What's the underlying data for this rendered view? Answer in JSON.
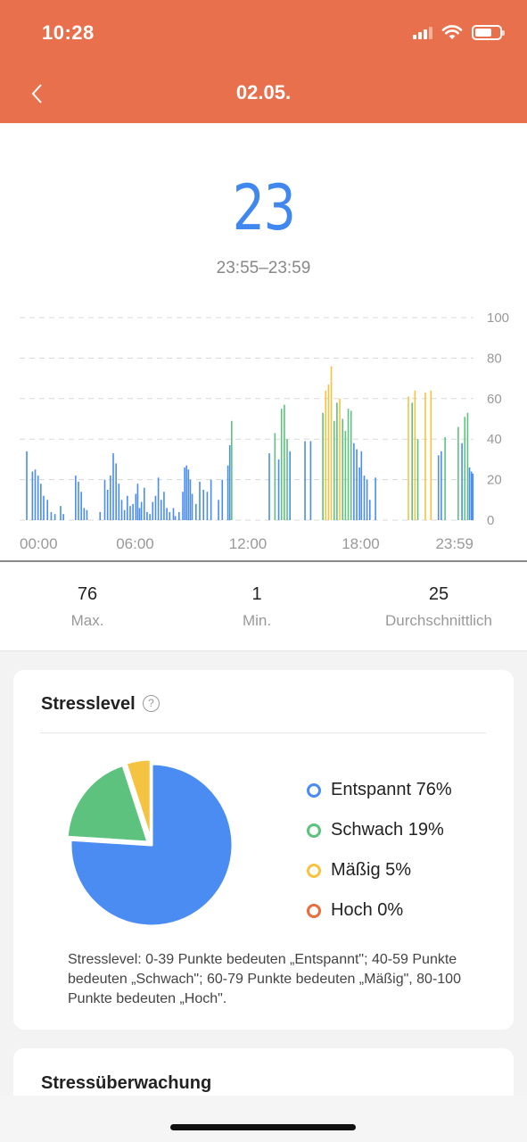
{
  "status_bar": {
    "time": "10:28"
  },
  "nav": {
    "title": "02.05."
  },
  "summary": {
    "value": "23",
    "range": "23:55–23:59"
  },
  "chart_data": {
    "type": "bar",
    "x_ticks": [
      "00:00",
      "06:00",
      "12:00",
      "18:00",
      "23:59"
    ],
    "y_ticks": [
      "100",
      "80",
      "60",
      "40",
      "20",
      "0"
    ],
    "ylim": [
      0,
      100
    ],
    "grid": true,
    "color_bands": [
      {
        "name": "Entspannt",
        "range": [
          0,
          39
        ],
        "color": "#4A8CF2"
      },
      {
        "name": "Schwach",
        "range": [
          40,
          59
        ],
        "color": "#5CC27D"
      },
      {
        "name": "Mäßig",
        "range": [
          60,
          79
        ],
        "color": "#F5C342"
      },
      {
        "name": "Hoch",
        "range": [
          80,
          100
        ],
        "color": "#E86C3C"
      }
    ],
    "points": [
      [
        0.2,
        34
      ],
      [
        0.5,
        24
      ],
      [
        0.65,
        25
      ],
      [
        0.8,
        22
      ],
      [
        0.95,
        18
      ],
      [
        1.1,
        12
      ],
      [
        1.3,
        10
      ],
      [
        1.5,
        4
      ],
      [
        1.7,
        3
      ],
      [
        2.0,
        7
      ],
      [
        2.15,
        3
      ],
      [
        2.8,
        22
      ],
      [
        2.95,
        19
      ],
      [
        3.1,
        14
      ],
      [
        3.25,
        6
      ],
      [
        3.4,
        5
      ],
      [
        4.1,
        4
      ],
      [
        4.35,
        20
      ],
      [
        4.5,
        15
      ],
      [
        4.65,
        22
      ],
      [
        4.8,
        33
      ],
      [
        4.95,
        28
      ],
      [
        5.1,
        18
      ],
      [
        5.25,
        10
      ],
      [
        5.4,
        5
      ],
      [
        5.55,
        12
      ],
      [
        5.7,
        7
      ],
      [
        5.85,
        8
      ],
      [
        6.0,
        13
      ],
      [
        6.1,
        18
      ],
      [
        6.2,
        6
      ],
      [
        6.3,
        9
      ],
      [
        6.45,
        16
      ],
      [
        6.6,
        4
      ],
      [
        6.75,
        3
      ],
      [
        6.9,
        9
      ],
      [
        7.05,
        12
      ],
      [
        7.2,
        21
      ],
      [
        7.35,
        10
      ],
      [
        7.5,
        14
      ],
      [
        7.65,
        6
      ],
      [
        7.8,
        4
      ],
      [
        8.0,
        6
      ],
      [
        8.1,
        2
      ],
      [
        8.3,
        4
      ],
      [
        8.5,
        14
      ],
      [
        8.6,
        26
      ],
      [
        8.7,
        27
      ],
      [
        8.8,
        25
      ],
      [
        8.9,
        20
      ],
      [
        9.0,
        13
      ],
      [
        9.2,
        8
      ],
      [
        9.4,
        19
      ],
      [
        9.6,
        15
      ],
      [
        9.8,
        14
      ],
      [
        10.0,
        20
      ],
      [
        10.4,
        10
      ],
      [
        10.6,
        20
      ],
      [
        10.9,
        27
      ],
      [
        11.0,
        37
      ],
      [
        11.1,
        49
      ],
      [
        13.1,
        33
      ],
      [
        13.4,
        43
      ],
      [
        13.6,
        30
      ],
      [
        13.75,
        55
      ],
      [
        13.9,
        57
      ],
      [
        14.05,
        40
      ],
      [
        14.2,
        34
      ],
      [
        15.0,
        39
      ],
      [
        15.3,
        39
      ],
      [
        15.95,
        53
      ],
      [
        16.1,
        64
      ],
      [
        16.25,
        67
      ],
      [
        16.4,
        76
      ],
      [
        16.55,
        49
      ],
      [
        16.7,
        58
      ],
      [
        16.85,
        60
      ],
      [
        17.0,
        50
      ],
      [
        17.15,
        44
      ],
      [
        17.3,
        55
      ],
      [
        17.45,
        54
      ],
      [
        17.6,
        38
      ],
      [
        17.75,
        35
      ],
      [
        17.9,
        26
      ],
      [
        18.0,
        34
      ],
      [
        18.15,
        22
      ],
      [
        18.3,
        20
      ],
      [
        18.45,
        10
      ],
      [
        18.75,
        21
      ],
      [
        20.5,
        61
      ],
      [
        20.7,
        58
      ],
      [
        20.85,
        64
      ],
      [
        21.0,
        40
      ],
      [
        21.4,
        63
      ],
      [
        21.7,
        64
      ],
      [
        22.1,
        32
      ],
      [
        22.25,
        34
      ],
      [
        22.45,
        41
      ],
      [
        23.15,
        46
      ],
      [
        23.35,
        38
      ],
      [
        23.5,
        51
      ],
      [
        23.65,
        53
      ],
      [
        23.75,
        26
      ],
      [
        23.85,
        24
      ],
      [
        23.93,
        23
      ]
    ]
  },
  "stats": [
    {
      "value": "76",
      "label": "Max."
    },
    {
      "value": "1",
      "label": "Min."
    },
    {
      "value": "25",
      "label": "Durchschnittlich"
    }
  ],
  "stress_card": {
    "title": "Stresslevel",
    "help_icon": "question-circle-icon",
    "pie": [
      {
        "label": "Entspannt",
        "percent": 76,
        "color": "#4A8CF2"
      },
      {
        "label": "Schwach",
        "percent": 19,
        "color": "#5CC27D"
      },
      {
        "label": "Mäßig",
        "percent": 5,
        "color": "#F5C342"
      },
      {
        "label": "Hoch",
        "percent": 0,
        "color": "#E86C3C"
      }
    ],
    "legend": [
      {
        "label": "Entspannt 76%",
        "color": "#4A8CF2"
      },
      {
        "label": "Schwach 19%",
        "color": "#5CC27D"
      },
      {
        "label": "Mäßig 5%",
        "color": "#F5C342"
      },
      {
        "label": "Hoch 0%",
        "color": "#E86C3C"
      }
    ],
    "description": "Stresslevel: 0-39 Punkte bedeuten „Entspannt\"; 40-59 Punkte bedeuten „Schwach\"; 60-79 Punkte bedeuten „Mäßig\", 80-100 Punkte bedeuten „Hoch\"."
  },
  "monitor_card": {
    "title": "Stressüberwachung"
  },
  "colors": {
    "header": "#E8704D",
    "accent": "#4087F0"
  }
}
